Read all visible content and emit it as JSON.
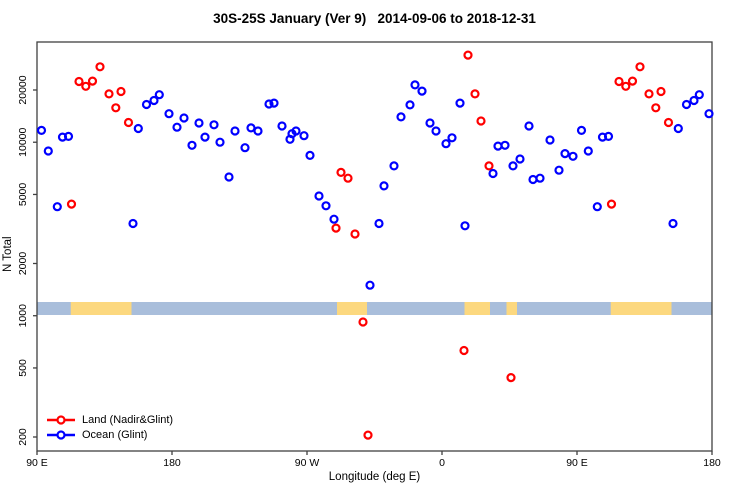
{
  "title": "30S-25S January (Ver 9)   2014-09-06 to 2018-12-31",
  "legend": {
    "items": [
      {
        "id": "land",
        "label": "Land (Nadir&Glint)",
        "color": "#ff0000"
      },
      {
        "id": "ocean",
        "label": "Ocean (Glint)",
        "color": "#0000ff"
      }
    ]
  },
  "axes": {
    "x_label": "Longitude (deg E)",
    "y_label": "N Total"
  },
  "chart_data": {
    "type": "scatter",
    "title": "30S-25S January (Ver 9)   2014-09-06 to 2018-12-31",
    "xlabel": "Longitude (deg E)",
    "ylabel": "N Total",
    "marker": "open-circle",
    "y_scale": "log10",
    "y_ticks": [
      20000,
      10000,
      5000,
      2000,
      1000,
      500,
      200
    ],
    "x_ticks": [
      {
        "label": "90 E",
        "t": 0
      },
      {
        "label": "180",
        "t": 90
      },
      {
        "label": "90 W",
        "t": 180
      },
      {
        "label": "0",
        "t": 270
      },
      {
        "label": "90 E",
        "t": 360
      },
      {
        "label": "180",
        "t": 450
      }
    ],
    "x_axis_span_deg": 450,
    "layout_note": "x axis runs eastward from 90E around the globe to 180; longitudes between 90E and 180 are plotted at both ends",
    "grid": false,
    "legend_position": "bottom-left",
    "series": [
      {
        "name": "Land (Nadir&Glint)",
        "color": "#ff0000",
        "points": [
          [
            118,
            22400
          ],
          [
            122.5,
            21000
          ],
          [
            127,
            22500
          ],
          [
            132,
            27200
          ],
          [
            138,
            19000
          ],
          [
            142.5,
            15800
          ],
          [
            146,
            19600
          ],
          [
            151,
            13000
          ],
          [
            113,
            4400
          ],
          [
            -70.7,
            3200
          ],
          [
            -67.3,
            6700
          ],
          [
            -62.7,
            6200
          ],
          [
            -58,
            2960
          ],
          [
            17.3,
            31800
          ],
          [
            22,
            19000
          ],
          [
            26,
            13250
          ],
          [
            31.3,
            7300
          ],
          [
            -52.7,
            920
          ],
          [
            14.7,
            630
          ],
          [
            46,
            440
          ],
          [
            -49.3,
            205
          ]
        ]
      },
      {
        "name": "Ocean (Glint)",
        "color": "#0000ff",
        "points": [
          [
            93,
            11700
          ],
          [
            97.5,
            8900
          ],
          [
            103.5,
            4250
          ],
          [
            107,
            10700
          ],
          [
            111,
            10800
          ],
          [
            154,
            3400
          ],
          [
            157.5,
            12000
          ],
          [
            163,
            16500
          ],
          [
            168,
            17400
          ],
          [
            171.5,
            18800
          ],
          [
            178,
            14600
          ],
          [
            -176.7,
            12200
          ],
          [
            -172,
            13800
          ],
          [
            -166.7,
            9600
          ],
          [
            -162,
            12900
          ],
          [
            -158,
            10700
          ],
          [
            -152,
            12600
          ],
          [
            -148,
            10000
          ],
          [
            -142,
            6300
          ],
          [
            -138,
            11600
          ],
          [
            -131.3,
            9300
          ],
          [
            -127.3,
            12100
          ],
          [
            -122.7,
            11600
          ],
          [
            -115.3,
            16600
          ],
          [
            -112,
            16800
          ],
          [
            -106.7,
            12400
          ],
          [
            -101.3,
            10400
          ],
          [
            -100,
            11200
          ],
          [
            -97.3,
            11600
          ],
          [
            -92,
            10900
          ],
          [
            -88,
            8400
          ],
          [
            -82,
            4900
          ],
          [
            -77.3,
            4300
          ],
          [
            -72,
            3600
          ],
          [
            -48,
            1500
          ],
          [
            -42,
            3400
          ],
          [
            -38.7,
            5600
          ],
          [
            -32,
            7300
          ],
          [
            -27.3,
            14000
          ],
          [
            -21.3,
            16400
          ],
          [
            -18,
            21400
          ],
          [
            -13.3,
            19700
          ],
          [
            -8,
            12900
          ],
          [
            -4,
            11600
          ],
          [
            2.7,
            9800
          ],
          [
            6.7,
            10600
          ],
          [
            12,
            16800
          ],
          [
            15.3,
            3300
          ],
          [
            34,
            6600
          ],
          [
            37.3,
            9500
          ],
          [
            42,
            9600
          ],
          [
            47.3,
            7300
          ],
          [
            52,
            8000
          ],
          [
            58,
            12400
          ],
          [
            60.7,
            6100
          ],
          [
            65.3,
            6200
          ],
          [
            72,
            10300
          ],
          [
            78,
            6900
          ],
          [
            82,
            8600
          ],
          [
            87.3,
            8300
          ]
        ]
      }
    ],
    "land_ocean_strip": {
      "description": "horizontal map strip at N ~1020-1220 showing land vs ocean along longitude",
      "ocean_color": "#a9bedb",
      "land_color": "#fcd87f",
      "land_segments_lon": [
        [
          112.5,
          153
        ],
        [
          -70,
          -50
        ],
        [
          15,
          32
        ],
        [
          43,
          50
        ]
      ]
    }
  }
}
